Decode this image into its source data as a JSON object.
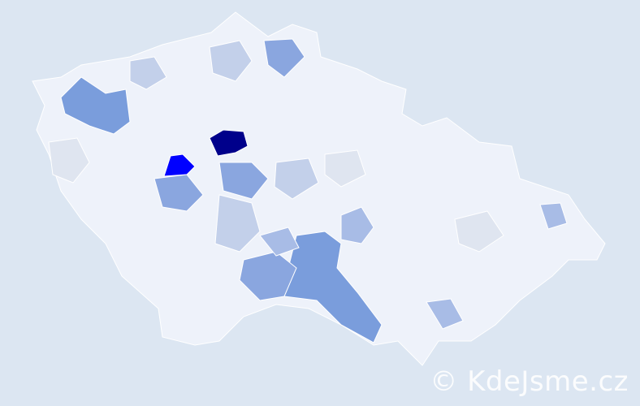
{
  "map": {
    "colors": {
      "background": "#dce6f2",
      "lowest": "#eef2fa",
      "low": "#dfe5f0",
      "light": "#c3d0ea",
      "medium": "#a8bce6",
      "mediumStrong": "#8aa6df",
      "strong": "#7a9ddc",
      "high": "#0000ff",
      "highest": "#00008b"
    },
    "regions": [
      {
        "level": "highest"
      },
      {
        "level": "high"
      },
      {
        "level": "strong"
      },
      {
        "level": "strong"
      },
      {
        "level": "mediumStrong"
      },
      {
        "level": "mediumStrong"
      },
      {
        "level": "mediumStrong"
      },
      {
        "level": "mediumStrong"
      },
      {
        "level": "medium"
      },
      {
        "level": "medium"
      },
      {
        "level": "medium"
      },
      {
        "level": "medium"
      },
      {
        "level": "light"
      },
      {
        "level": "light"
      },
      {
        "level": "light"
      },
      {
        "level": "light"
      },
      {
        "level": "low"
      },
      {
        "level": "low"
      },
      {
        "level": "low"
      }
    ]
  },
  "watermark": "© KdeJsme.cz"
}
